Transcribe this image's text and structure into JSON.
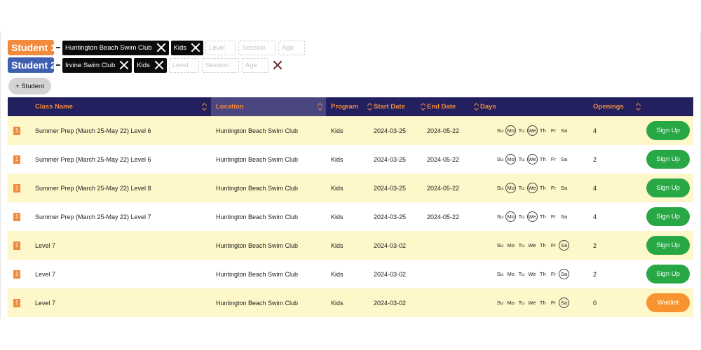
{
  "students": [
    {
      "label": "Student 1",
      "filters": [
        "Huntington Beach Swim Club",
        "Kids"
      ],
      "placeholders": [
        "Level",
        "Session",
        "Age"
      ],
      "clearable": false
    },
    {
      "label": "Student 2",
      "filters": [
        "Irvine Swim Club",
        "Kids"
      ],
      "placeholders": [
        "Level",
        "Session",
        "Age"
      ],
      "clearable": true
    }
  ],
  "add_student_label": "+ Student",
  "table": {
    "headers": {
      "class_name": "Class Name",
      "location": "Location",
      "program": "Program",
      "start_date": "Start Date",
      "end_date": "End Date",
      "days": "Days",
      "openings": "Openings"
    },
    "day_letters": [
      "Su",
      "Mo",
      "Tu",
      "We",
      "Th",
      "Fr",
      "Sa"
    ],
    "rows": [
      {
        "student": "1",
        "class_name": "Summer Prep (March 25-May 22) Level 6",
        "location": "Huntington Beach Swim Club",
        "program": "Kids",
        "start_date": "2024-03-25",
        "end_date": "2024-05-22",
        "active_days": [
          "Mo",
          "We"
        ],
        "openings": "4",
        "action": "Sign Up"
      },
      {
        "student": "1",
        "class_name": "Summer Prep (March 25-May 22) Level 6",
        "location": "Huntington Beach Swim Club",
        "program": "Kids",
        "start_date": "2024-03-25",
        "end_date": "2024-05-22",
        "active_days": [
          "Mo",
          "We"
        ],
        "openings": "2",
        "action": "Sign Up"
      },
      {
        "student": "1",
        "class_name": "Summer Prep (March 25-May 22) Level 8",
        "location": "Huntington Beach Swim Club",
        "program": "Kids",
        "start_date": "2024-03-25",
        "end_date": "2024-05-22",
        "active_days": [
          "Mo",
          "We"
        ],
        "openings": "4",
        "action": "Sign Up"
      },
      {
        "student": "1",
        "class_name": "Summer Prep (March 25-May 22) Level 7",
        "location": "Huntington Beach Swim Club",
        "program": "Kids",
        "start_date": "2024-03-25",
        "end_date": "2024-05-22",
        "active_days": [
          "Mo",
          "We"
        ],
        "openings": "4",
        "action": "Sign Up"
      },
      {
        "student": "1",
        "class_name": "Level 7",
        "location": "Huntington Beach Swim Club",
        "program": "Kids",
        "start_date": "2024-03-02",
        "end_date": "",
        "active_days": [
          "Sa"
        ],
        "openings": "2",
        "action": "Sign Up"
      },
      {
        "student": "1",
        "class_name": "Level 7",
        "location": "Huntington Beach Swim Club",
        "program": "Kids",
        "start_date": "2024-03-02",
        "end_date": "",
        "active_days": [
          "Sa"
        ],
        "openings": "2",
        "action": "Sign Up"
      },
      {
        "student": "1",
        "class_name": "Level 7",
        "location": "Huntington Beach Swim Club",
        "program": "Kids",
        "start_date": "2024-03-02",
        "end_date": "",
        "active_days": [
          "Sa"
        ],
        "openings": "0",
        "action": "Waitlist"
      }
    ]
  },
  "colors": {
    "student1": "#f28a3c",
    "student2": "#3f5fb0",
    "header_bg": "#22205e",
    "row_highlight": "#fdf7c9",
    "signup": "#28a745",
    "waitlist": "#f7942f"
  }
}
